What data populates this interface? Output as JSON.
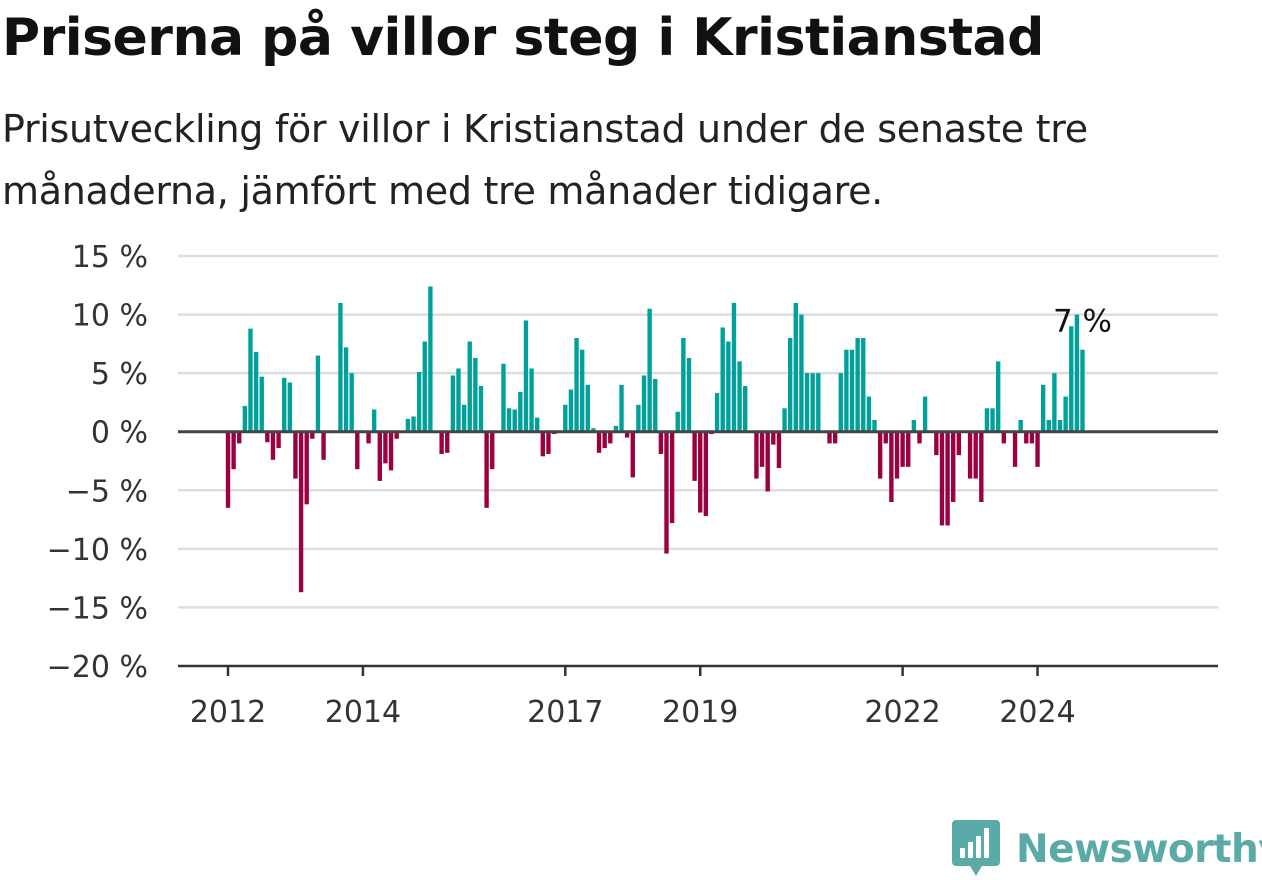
{
  "title": "Priserna på villor steg i Kristianstad",
  "subtitle": "Prisutveckling för villor i Kristianstad under de senaste tre månaderna, jämfört med tre månader tidigare.",
  "brand": {
    "name": "Newsworthy",
    "icon": "bar-chart-badge-icon",
    "color": "#5aaaa8"
  },
  "colors": {
    "positive": "#00a19a",
    "negative": "#9b0040",
    "grid": "#dddddd",
    "zero_line": "#444444"
  },
  "chart_data": {
    "type": "bar",
    "x_ticks": [
      {
        "label": "2012",
        "year": 2012
      },
      {
        "label": "2014",
        "year": 2014
      },
      {
        "label": "2017",
        "year": 2017
      },
      {
        "label": "2019",
        "year": 2019
      },
      {
        "label": "2022",
        "year": 2022
      },
      {
        "label": "2024",
        "year": 2024
      }
    ],
    "y_ticks": [
      {
        "value": 15,
        "label": "15 %"
      },
      {
        "value": 10,
        "label": "10 %"
      },
      {
        "value": 5,
        "label": "5 %"
      },
      {
        "value": 0,
        "label": "0 %"
      },
      {
        "value": -5,
        "label": "−5 %"
      },
      {
        "value": -10,
        "label": "−10 %"
      },
      {
        "value": -15,
        "label": "−15 %"
      },
      {
        "value": -20,
        "label": "−20 %"
      }
    ],
    "ylim": [
      -20,
      15
    ],
    "grid": true,
    "start": "2012-01",
    "end": "2025-01",
    "last_value_label": "7 %",
    "values": [
      -6.5,
      -3.2,
      -1,
      2.2,
      8.8,
      6.8,
      4.7,
      -0.9,
      -2.4,
      -1.4,
      4.6,
      4.2,
      -4,
      -13.7,
      -6.2,
      -0.6,
      6.5,
      -2.4,
      0,
      0,
      11,
      7.2,
      5,
      -3.2,
      0,
      -1,
      1.9,
      -4.2,
      -2.7,
      -3.3,
      -0.6,
      0.1,
      1.1,
      1.3,
      5.1,
      7.7,
      12.4,
      0,
      -1.9,
      -1.8,
      4.8,
      5.4,
      2.3,
      7.7,
      6.3,
      3.9,
      -6.5,
      -3.2,
      0,
      5.8,
      2,
      1.9,
      3.4,
      9.5,
      5.4,
      1.2,
      -2.1,
      -1.9,
      -0.2,
      0,
      2.3,
      3.6,
      8,
      7,
      4,
      0.3,
      -1.8,
      -1.4,
      -1,
      0.5,
      4,
      -0.5,
      -3.9,
      2.3,
      4.8,
      10.5,
      4.5,
      -1.9,
      -10.4,
      -7.8,
      1.7,
      8,
      6.3,
      -4.2,
      -6.9,
      -7.2,
      -0.2,
      3.3,
      8.9,
      7.7,
      11,
      6,
      3.9,
      0,
      -4,
      -3,
      -5.1,
      -1.1,
      -3.1,
      2,
      8,
      11,
      10,
      5,
      5,
      5,
      0,
      -1,
      -1,
      5,
      7,
      7,
      8,
      8,
      3,
      1,
      -4,
      -1,
      -6,
      -4,
      -3,
      -3,
      1,
      -1,
      3,
      0,
      -2,
      -8,
      -8,
      -6,
      -2,
      0,
      -4,
      -4,
      -6,
      2,
      2,
      6,
      -1,
      0,
      -3,
      1,
      -1,
      -1,
      -3,
      4,
      1,
      5,
      1,
      3,
      9,
      10,
      7
    ]
  }
}
